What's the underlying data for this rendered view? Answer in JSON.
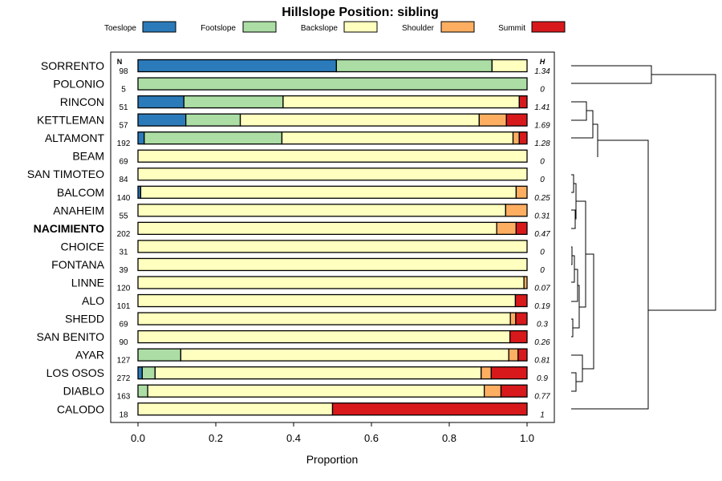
{
  "chart_data": {
    "type": "bar",
    "stacked": true,
    "orientation": "horizontal",
    "title": "Hillslope Position: sibling",
    "xlabel": "Proportion",
    "xlim": [
      0,
      1
    ],
    "x_ticks": [
      "0.0",
      "0.2",
      "0.4",
      "0.6",
      "0.8",
      "1.0"
    ],
    "legend_position": "top",
    "n_header": "N",
    "h_header": "H",
    "series": [
      {
        "name": "Toeslope",
        "color": "#2b7bba"
      },
      {
        "name": "Footslope",
        "color": "#abdda4"
      },
      {
        "name": "Backslope",
        "color": "#ffffbf"
      },
      {
        "name": "Shoulder",
        "color": "#fdae61"
      },
      {
        "name": "Summit",
        "color": "#d7191c"
      }
    ],
    "categories": [
      {
        "name": "SORRENTO",
        "n": "98",
        "h": "1.34",
        "bold": false,
        "values": [
          0.51,
          0.4,
          0.09,
          0,
          0
        ]
      },
      {
        "name": "POLONIO",
        "n": "5",
        "h": "0",
        "bold": false,
        "values": [
          0,
          1.0,
          0,
          0,
          0
        ]
      },
      {
        "name": "RINCON",
        "n": "51",
        "h": "1.41",
        "bold": false,
        "values": [
          0.118,
          0.255,
          0.607,
          0,
          0.02
        ]
      },
      {
        "name": "KETTLEMAN",
        "n": "57",
        "h": "1.69",
        "bold": false,
        "values": [
          0.123,
          0.14,
          0.614,
          0.07,
          0.053
        ]
      },
      {
        "name": "ALTAMONT",
        "n": "192",
        "h": "1.28",
        "bold": false,
        "values": [
          0.016,
          0.354,
          0.594,
          0.016,
          0.02
        ]
      },
      {
        "name": "BEAM",
        "n": "69",
        "h": "0",
        "bold": false,
        "values": [
          0,
          0,
          1.0,
          0,
          0
        ]
      },
      {
        "name": "SAN TIMOTEO",
        "n": "84",
        "h": "0",
        "bold": false,
        "values": [
          0,
          0,
          1.0,
          0,
          0
        ]
      },
      {
        "name": "BALCOM",
        "n": "140",
        "h": "0.25",
        "bold": false,
        "values": [
          0.007,
          0,
          0.965,
          0.028,
          0
        ]
      },
      {
        "name": "ANAHEIM",
        "n": "55",
        "h": "0.31",
        "bold": false,
        "values": [
          0,
          0,
          0.945,
          0.055,
          0
        ]
      },
      {
        "name": "NACIMIENTO",
        "n": "202",
        "h": "0.47",
        "bold": true,
        "values": [
          0,
          0,
          0.922,
          0.05,
          0.028
        ]
      },
      {
        "name": "CHOICE",
        "n": "31",
        "h": "0",
        "bold": false,
        "values": [
          0,
          0,
          1.0,
          0,
          0
        ]
      },
      {
        "name": "FONTANA",
        "n": "39",
        "h": "0",
        "bold": false,
        "values": [
          0,
          0,
          1.0,
          0,
          0
        ]
      },
      {
        "name": "LINNE",
        "n": "120",
        "h": "0.07",
        "bold": false,
        "values": [
          0,
          0,
          0.992,
          0.008,
          0
        ]
      },
      {
        "name": "ALO",
        "n": "101",
        "h": "0.19",
        "bold": false,
        "values": [
          0,
          0,
          0.97,
          0,
          0.03
        ]
      },
      {
        "name": "SHEDD",
        "n": "69",
        "h": "0.3",
        "bold": false,
        "values": [
          0,
          0,
          0.957,
          0.014,
          0.029
        ]
      },
      {
        "name": "SAN BENITO",
        "n": "90",
        "h": "0.26",
        "bold": false,
        "values": [
          0,
          0,
          0.956,
          0,
          0.044
        ]
      },
      {
        "name": "AYAR",
        "n": "127",
        "h": "0.81",
        "bold": false,
        "values": [
          0,
          0.11,
          0.843,
          0.024,
          0.023
        ]
      },
      {
        "name": "LOS OSOS",
        "n": "272",
        "h": "0.9",
        "bold": false,
        "values": [
          0.011,
          0.033,
          0.838,
          0.026,
          0.092
        ]
      },
      {
        "name": "DIABLO",
        "n": "163",
        "h": "0.77",
        "bold": false,
        "values": [
          0,
          0.025,
          0.865,
          0.043,
          0.067
        ]
      },
      {
        "name": "CALODO",
        "n": "18",
        "h": "1",
        "bold": false,
        "values": [
          0,
          0,
          0.5,
          0,
          0.5
        ]
      }
    ]
  }
}
